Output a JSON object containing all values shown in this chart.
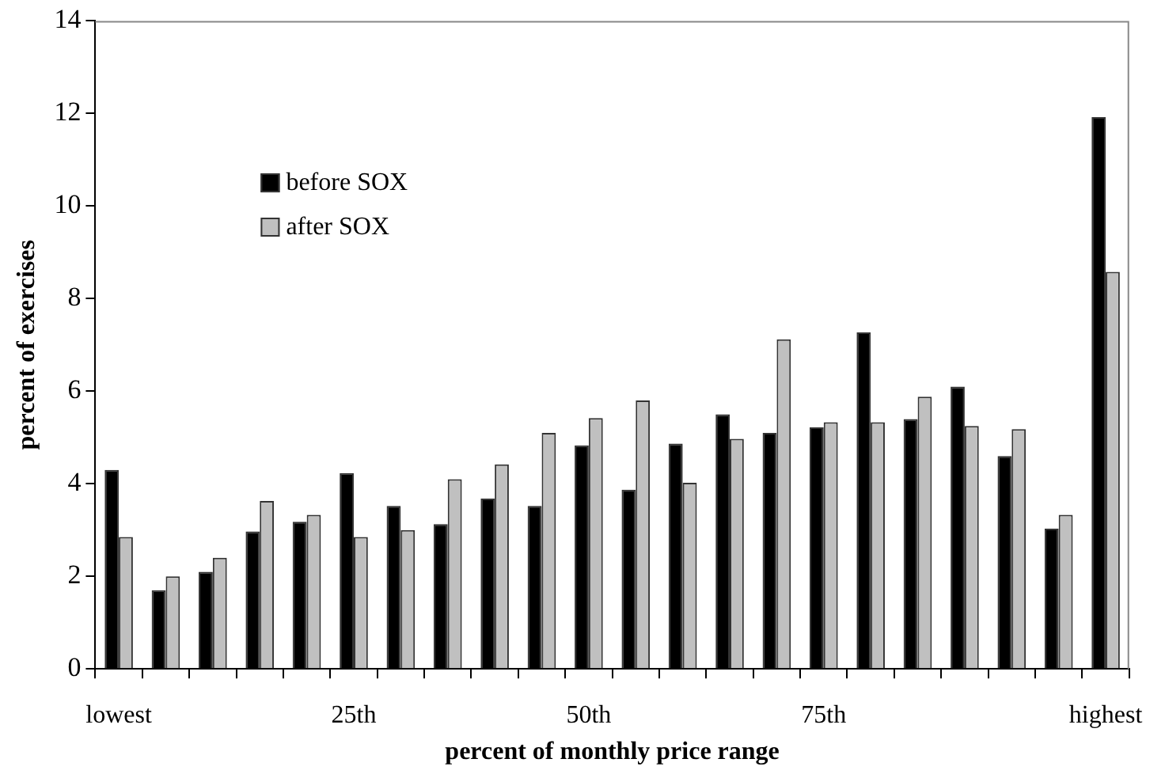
{
  "chart_data": {
    "type": "bar",
    "xlabel": "percent of monthly price range",
    "ylabel": "percent of exercises",
    "categories": [
      "lowest",
      null,
      null,
      null,
      null,
      "25th",
      null,
      null,
      null,
      null,
      "50th",
      null,
      null,
      null,
      null,
      "75th",
      null,
      null,
      null,
      null,
      null,
      "highest"
    ],
    "series": [
      {
        "name": "before SOX",
        "color": "#000000",
        "values": [
          4.3,
          1.7,
          2.1,
          2.97,
          3.18,
          4.23,
          3.52,
          3.13,
          3.68,
          3.52,
          4.83,
          3.87,
          4.87,
          5.5,
          5.1,
          5.22,
          7.27,
          5.4,
          6.1,
          4.6,
          3.03,
          11.92
        ]
      },
      {
        "name": "after SOX",
        "color": "#c0c0c0",
        "values": [
          2.85,
          2.0,
          2.4,
          3.63,
          3.33,
          2.85,
          3.0,
          4.1,
          4.42,
          5.1,
          5.42,
          5.8,
          4.02,
          4.97,
          7.12,
          5.33,
          5.33,
          5.88,
          5.25,
          5.18,
          3.33,
          8.58
        ]
      }
    ],
    "ylim": [
      0,
      14
    ],
    "yticks": [
      0,
      2,
      4,
      6,
      8,
      10,
      12,
      14
    ],
    "grid": false,
    "legend": "top left"
  }
}
